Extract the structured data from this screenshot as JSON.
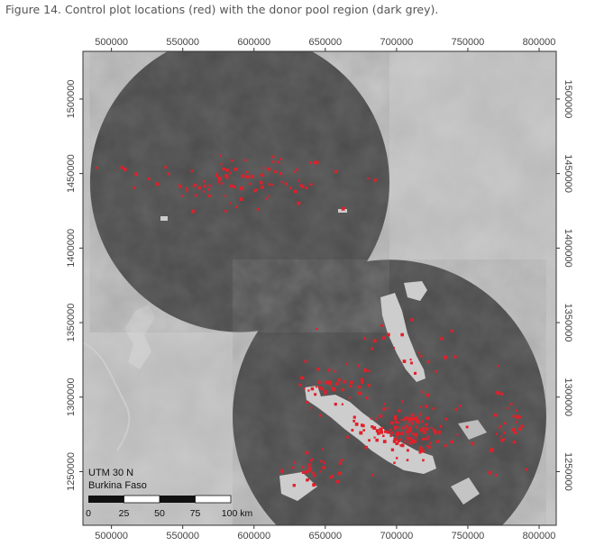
{
  "caption": "Figure 14. Control plot locations (red) with the donor pool region (dark grey).",
  "map": {
    "projection_label": "UTM 30 N",
    "country_label": "Burkina Faso",
    "x_ticks": [
      "500000",
      "550000",
      "600000",
      "650000",
      "700000",
      "750000",
      "800000"
    ],
    "y_ticks": [
      "1500000",
      "1450000",
      "1400000",
      "1350000",
      "1300000",
      "1250000"
    ],
    "x_tick_values": [
      500000,
      550000,
      600000,
      650000,
      700000,
      750000,
      800000
    ],
    "y_tick_values": [
      1500000,
      1450000,
      1400000,
      1350000,
      1300000,
      1250000
    ],
    "extent": {
      "xmin": 480000,
      "xmax": 812000,
      "ymin": 1214000,
      "ymax": 1532000
    },
    "scale_bar": {
      "labels": [
        "0",
        "25",
        "50",
        "75",
        "100 km"
      ],
      "values_km": [
        0,
        25,
        50,
        75,
        100
      ]
    },
    "colors": {
      "background": "#b8b8b8",
      "donor_pool": "#4a4a4a",
      "plots": "#e0202a",
      "water": "#cfcfcf"
    },
    "donor_pool_regions": [
      {
        "name": "north-region",
        "center": [
          590000,
          1444000
        ],
        "radius": 105000
      },
      {
        "name": "south-region",
        "center": [
          695000,
          1287000
        ],
        "radius": 110000
      }
    ],
    "control_plot_clusters": [
      {
        "center": [
          590000,
          1445000
        ],
        "spread": [
          60000,
          14000
        ],
        "count": 90
      },
      {
        "center": [
          705000,
          1278000
        ],
        "spread": [
          28000,
          14000
        ],
        "count": 150
      },
      {
        "center": [
          650000,
          1305000
        ],
        "spread": [
          22000,
          12000
        ],
        "count": 40
      },
      {
        "center": [
          640000,
          1250000
        ],
        "spread": [
          22000,
          10000
        ],
        "count": 30
      },
      {
        "center": [
          775000,
          1280000
        ],
        "spread": [
          15000,
          18000
        ],
        "count": 30
      },
      {
        "center": [
          700000,
          1330000
        ],
        "spread": [
          50000,
          20000
        ],
        "count": 30
      },
      {
        "center": [
          510000,
          1452000
        ],
        "spread": [
          12000,
          3000
        ],
        "count": 4
      }
    ]
  }
}
